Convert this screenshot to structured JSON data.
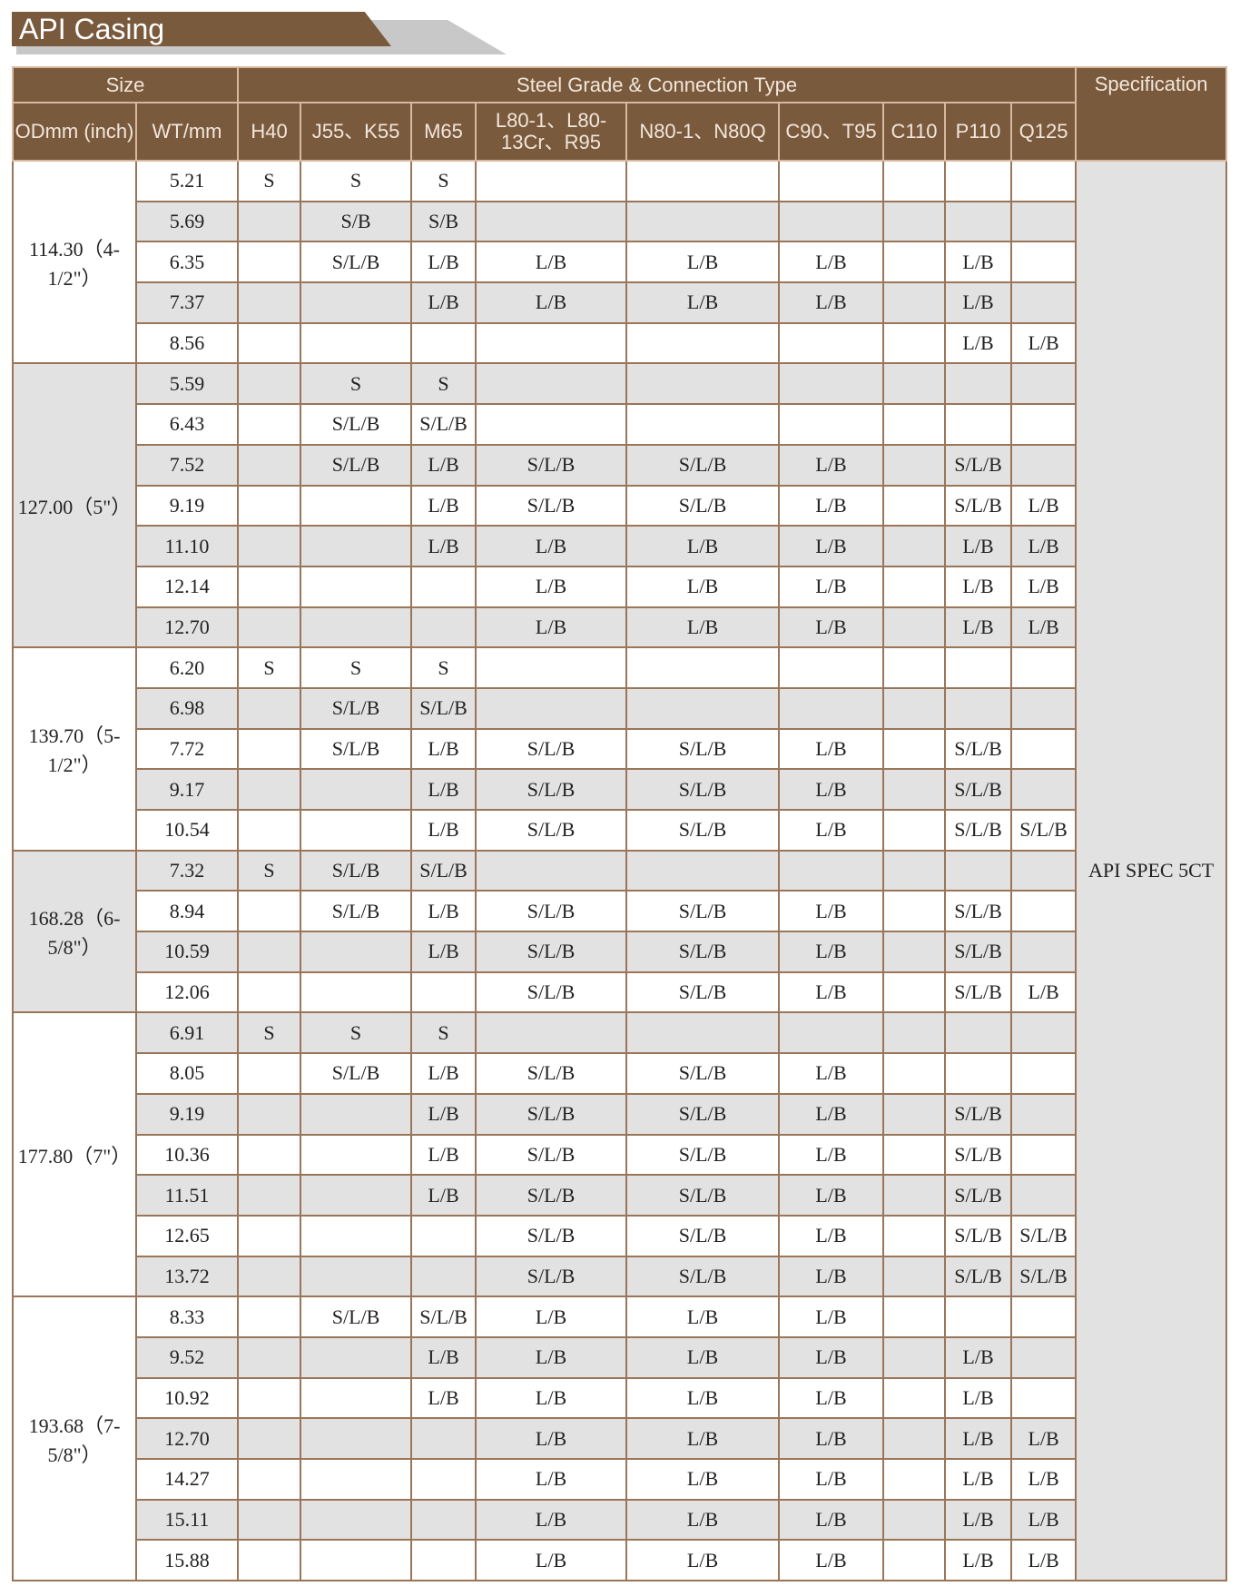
{
  "title": "API Casing",
  "header": {
    "size": "Size",
    "grade_group": "Steel Grade & Connection Type",
    "specification": "Specification",
    "od": "ODmm (inch)",
    "wt": "WT/mm",
    "grades": [
      "H40",
      "J55、K55",
      "M65",
      "L80-1、L80-13Cr、R95",
      "N80-1、N80Q",
      "C90、T95",
      "C110",
      "P110",
      "Q125"
    ]
  },
  "specification_value": "API SPEC 5CT",
  "colors": {
    "header_bg": "#7a5a3c",
    "shade": "#e2e2e2",
    "border": "#9a7558"
  },
  "groups": [
    {
      "od": "114.30（4-1/2\"）",
      "shaded": false,
      "rows": [
        {
          "wt": "5.21",
          "v": [
            "S",
            "S",
            "S",
            "",
            "",
            "",
            "",
            "",
            ""
          ]
        },
        {
          "wt": "5.69",
          "v": [
            "",
            "S/B",
            "S/B",
            "",
            "",
            "",
            "",
            "",
            ""
          ]
        },
        {
          "wt": "6.35",
          "v": [
            "",
            "S/L/B",
            "L/B",
            "L/B",
            "L/B",
            "L/B",
            "",
            "L/B",
            ""
          ]
        },
        {
          "wt": "7.37",
          "v": [
            "",
            "",
            "L/B",
            "L/B",
            "L/B",
            "L/B",
            "",
            "L/B",
            ""
          ]
        },
        {
          "wt": "8.56",
          "v": [
            "",
            "",
            "",
            "",
            "",
            "",
            "",
            "L/B",
            "L/B"
          ]
        }
      ]
    },
    {
      "od": "127.00（5\"）",
      "shaded": true,
      "rows": [
        {
          "wt": "5.59",
          "v": [
            "",
            "S",
            "S",
            "",
            "",
            "",
            "",
            "",
            ""
          ]
        },
        {
          "wt": "6.43",
          "v": [
            "",
            "S/L/B",
            "S/L/B",
            "",
            "",
            "",
            "",
            "",
            ""
          ]
        },
        {
          "wt": "7.52",
          "v": [
            "",
            "S/L/B",
            "L/B",
            "S/L/B",
            "S/L/B",
            "L/B",
            "",
            "S/L/B",
            ""
          ]
        },
        {
          "wt": "9.19",
          "v": [
            "",
            "",
            "L/B",
            "S/L/B",
            "S/L/B",
            "L/B",
            "",
            "S/L/B",
            "L/B"
          ]
        },
        {
          "wt": "11.10",
          "v": [
            "",
            "",
            "L/B",
            "L/B",
            "L/B",
            "L/B",
            "",
            "L/B",
            "L/B"
          ]
        },
        {
          "wt": "12.14",
          "v": [
            "",
            "",
            "",
            "L/B",
            "L/B",
            "L/B",
            "",
            "L/B",
            "L/B"
          ]
        },
        {
          "wt": "12.70",
          "v": [
            "",
            "",
            "",
            "L/B",
            "L/B",
            "L/B",
            "",
            "L/B",
            "L/B"
          ]
        }
      ]
    },
    {
      "od": "139.70（5-1/2\"）",
      "shaded": false,
      "rows": [
        {
          "wt": "6.20",
          "v": [
            "S",
            "S",
            "S",
            "",
            "",
            "",
            "",
            "",
            ""
          ]
        },
        {
          "wt": "6.98",
          "v": [
            "",
            "S/L/B",
            "S/L/B",
            "",
            "",
            "",
            "",
            "",
            ""
          ]
        },
        {
          "wt": "7.72",
          "v": [
            "",
            "S/L/B",
            "L/B",
            "S/L/B",
            "S/L/B",
            "L/B",
            "",
            "S/L/B",
            ""
          ]
        },
        {
          "wt": "9.17",
          "v": [
            "",
            "",
            "L/B",
            "S/L/B",
            "S/L/B",
            "L/B",
            "",
            "S/L/B",
            ""
          ]
        },
        {
          "wt": "10.54",
          "v": [
            "",
            "",
            "L/B",
            "S/L/B",
            "S/L/B",
            "L/B",
            "",
            "S/L/B",
            "S/L/B"
          ]
        }
      ]
    },
    {
      "od": "168.28（6-5/8\"）",
      "shaded": true,
      "rows": [
        {
          "wt": "7.32",
          "v": [
            "S",
            "S/L/B",
            "S/L/B",
            "",
            "",
            "",
            "",
            "",
            ""
          ]
        },
        {
          "wt": "8.94",
          "v": [
            "",
            "S/L/B",
            "L/B",
            "S/L/B",
            "S/L/B",
            "L/B",
            "",
            "S/L/B",
            ""
          ]
        },
        {
          "wt": "10.59",
          "v": [
            "",
            "",
            "L/B",
            "S/L/B",
            "S/L/B",
            "L/B",
            "",
            "S/L/B",
            ""
          ]
        },
        {
          "wt": "12.06",
          "v": [
            "",
            "",
            "",
            "S/L/B",
            "S/L/B",
            "L/B",
            "",
            "S/L/B",
            "L/B"
          ]
        }
      ]
    },
    {
      "od": "177.80（7\"）",
      "shaded": false,
      "rows": [
        {
          "wt": "6.91",
          "v": [
            "S",
            "S",
            "S",
            "",
            "",
            "",
            "",
            "",
            ""
          ]
        },
        {
          "wt": "8.05",
          "v": [
            "",
            "S/L/B",
            "L/B",
            "S/L/B",
            "S/L/B",
            "L/B",
            "",
            "",
            ""
          ]
        },
        {
          "wt": "9.19",
          "v": [
            "",
            "",
            "L/B",
            "S/L/B",
            "S/L/B",
            "L/B",
            "",
            "S/L/B",
            ""
          ]
        },
        {
          "wt": "10.36",
          "v": [
            "",
            "",
            "L/B",
            "S/L/B",
            "S/L/B",
            "L/B",
            "",
            "S/L/B",
            ""
          ]
        },
        {
          "wt": "11.51",
          "v": [
            "",
            "",
            "L/B",
            "S/L/B",
            "S/L/B",
            "L/B",
            "",
            "S/L/B",
            ""
          ]
        },
        {
          "wt": "12.65",
          "v": [
            "",
            "",
            "",
            "S/L/B",
            "S/L/B",
            "L/B",
            "",
            "S/L/B",
            "S/L/B"
          ]
        },
        {
          "wt": "13.72",
          "v": [
            "",
            "",
            "",
            "S/L/B",
            "S/L/B",
            "L/B",
            "",
            "S/L/B",
            "S/L/B"
          ]
        }
      ]
    },
    {
      "od": "193.68（7-5/8\"）",
      "shaded": false,
      "rows": [
        {
          "wt": "8.33",
          "v": [
            "",
            "S/L/B",
            "S/L/B",
            "L/B",
            "L/B",
            "L/B",
            "",
            "",
            ""
          ]
        },
        {
          "wt": "9.52",
          "v": [
            "",
            "",
            "L/B",
            "L/B",
            "L/B",
            "L/B",
            "",
            "L/B",
            ""
          ]
        },
        {
          "wt": "10.92",
          "v": [
            "",
            "",
            "L/B",
            "L/B",
            "L/B",
            "L/B",
            "",
            "L/B",
            ""
          ]
        },
        {
          "wt": "12.70",
          "v": [
            "",
            "",
            "",
            "L/B",
            "L/B",
            "L/B",
            "",
            "L/B",
            "L/B"
          ]
        },
        {
          "wt": "14.27",
          "v": [
            "",
            "",
            "",
            "L/B",
            "L/B",
            "L/B",
            "",
            "L/B",
            "L/B"
          ]
        },
        {
          "wt": "15.11",
          "v": [
            "",
            "",
            "",
            "L/B",
            "L/B",
            "L/B",
            "",
            "L/B",
            "L/B"
          ]
        },
        {
          "wt": "15.88",
          "v": [
            "",
            "",
            "",
            "L/B",
            "L/B",
            "L/B",
            "",
            "L/B",
            "L/B"
          ]
        }
      ]
    }
  ]
}
